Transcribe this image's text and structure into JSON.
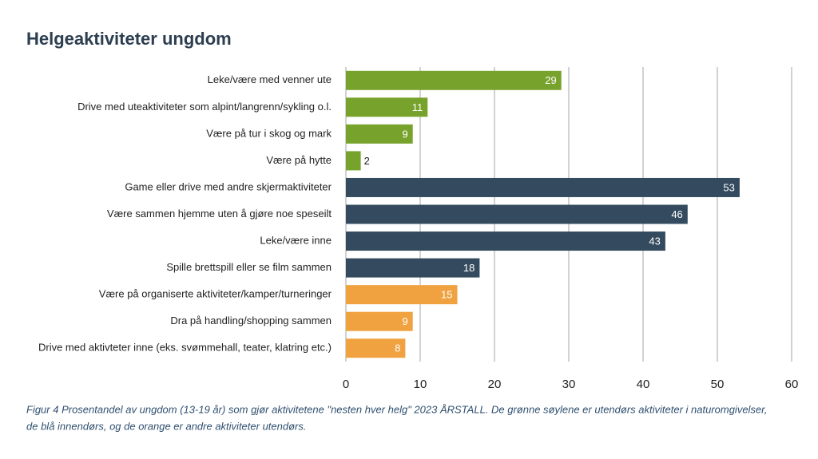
{
  "chart_data": {
    "type": "bar",
    "orientation": "horizontal",
    "title": "Helgeaktiviteter ungdom",
    "categories": [
      "Leke/være med venner ute",
      "Drive med uteaktiviteter som alpint/langrenn/sykling o.l.",
      "Være på tur i skog og mark",
      "Være på hytte",
      "Game eller drive med andre skjermaktiviteter",
      "Være sammen hjemme uten å gjøre noe speseilt",
      "Leke/være inne",
      "Spille brettspill eller se film sammen",
      "Være på organiserte aktiviteter/kamper/turneringer",
      "Dra på handling/shopping sammen",
      "Drive med aktivteter inne (eks. svømmehall, teater, klatring etc.)"
    ],
    "values": [
      29,
      11,
      9,
      2,
      53,
      46,
      43,
      18,
      15,
      9,
      8
    ],
    "colors": [
      "#77a22b",
      "#77a22b",
      "#77a22b",
      "#77a22b",
      "#344b5f",
      "#344b5f",
      "#344b5f",
      "#344b5f",
      "#f0a240",
      "#f0a240",
      "#f0a240"
    ],
    "xlim": [
      0,
      60
    ],
    "xticks": [
      0,
      10,
      20,
      30,
      40,
      50,
      60
    ],
    "grid": true,
    "caption": [
      "Figur 4 Prosentandel av ungdom (13-19 år) som gjør aktivitetene \"nesten hver helg\" 2023 ÅRSTALL. De grønne søylene er utendørs aktiviteter i naturomgivelser,",
      "de blå innendørs, og de orange er andre aktiviteter utendørs."
    ]
  }
}
